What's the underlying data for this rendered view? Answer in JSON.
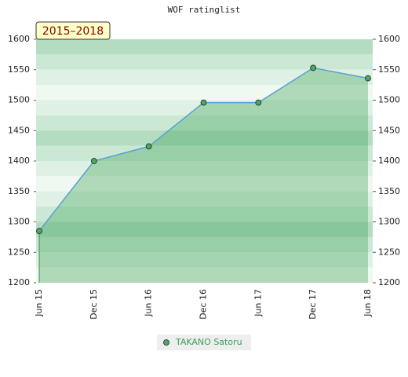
{
  "chart_data": {
    "type": "area-line",
    "title": "WOF ratinglist",
    "annotation": "2015–2018",
    "categories": [
      "Jun 15",
      "Dec 15",
      "Jun 16",
      "Dec 16",
      "Jun 17",
      "Dec 17",
      "Jun 18"
    ],
    "series": [
      {
        "name": "TAKANO Satoru",
        "color": "#5a9fd6",
        "values": [
          1285,
          1400,
          1424,
          1496,
          1496,
          1553,
          1536
        ]
      }
    ],
    "ylim": [
      1200,
      1600
    ],
    "yticks": [
      1200,
      1250,
      1300,
      1350,
      1400,
      1450,
      1500,
      1550,
      1600
    ],
    "y2lim": [
      1200,
      1600
    ],
    "y2ticks": [
      1200,
      1250,
      1300,
      1350,
      1400,
      1450,
      1500,
      1550,
      1600
    ]
  }
}
